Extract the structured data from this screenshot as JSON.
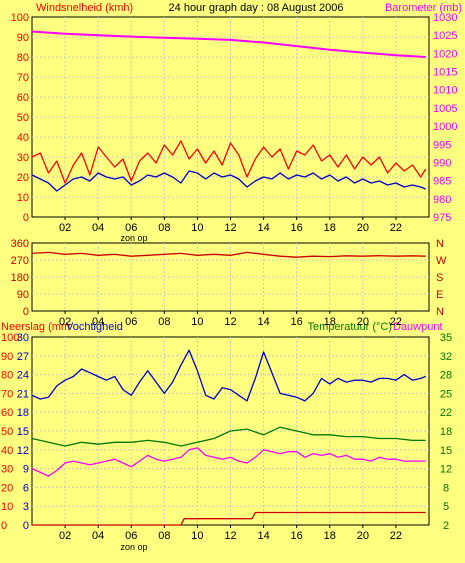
{
  "chart_data": [
    {
      "type": "line",
      "title": "24 hour graph day : 08 August 2006",
      "ylabel_left": "Windsnelheid (kmh)",
      "ylabel_right": "Barometer (mb)",
      "left_ticks": [
        "100",
        "90",
        "80",
        "70",
        "60",
        "50",
        "40",
        "30",
        "20",
        "10",
        "0"
      ],
      "right_ticks": [
        "1030",
        "1025",
        "1020",
        "1015",
        "1010",
        "1005",
        "1000",
        "995",
        "990",
        "985",
        "980",
        "975"
      ],
      "x_ticks": [
        "02",
        "04",
        "06",
        "08",
        "10",
        "12",
        "14",
        "16",
        "18",
        "20",
        "22"
      ],
      "x_annotation": "zon op",
      "ylim_left": [
        0,
        100
      ],
      "ylim_right": [
        975,
        1030
      ],
      "xlim": [
        0,
        24
      ],
      "grid": true,
      "series": [
        {
          "color": "#ff00ff",
          "axis": "right",
          "x": [
            0,
            2,
            4,
            6,
            8,
            10,
            12,
            14,
            16,
            18,
            20,
            22,
            23.8
          ],
          "y": [
            1026,
            1025.4,
            1025,
            1024.6,
            1024.3,
            1024,
            1023.7,
            1023,
            1022,
            1021,
            1020.2,
            1019.5,
            1019
          ]
        },
        {
          "color": "#ff0000",
          "axis": "left",
          "x": [
            0,
            0.5,
            1,
            1.5,
            2,
            2.5,
            3,
            3.5,
            4,
            4.5,
            5,
            5.5,
            6,
            6.5,
            7,
            7.5,
            8,
            8.5,
            9,
            9.5,
            10,
            10.5,
            11,
            11.5,
            12,
            12.5,
            13,
            13.5,
            14,
            14.5,
            15,
            15.5,
            16,
            16.5,
            17,
            17.5,
            18,
            18.5,
            19,
            19.5,
            20,
            20.5,
            21,
            21.5,
            22,
            22.5,
            23,
            23.5,
            23.8
          ],
          "y": [
            30,
            32,
            22,
            28,
            17,
            26,
            32,
            21,
            35,
            30,
            25,
            29,
            18,
            28,
            32,
            27,
            36,
            31,
            38,
            29,
            34,
            27,
            33,
            26,
            37,
            31,
            20,
            29,
            35,
            30,
            34,
            24,
            33,
            31,
            36,
            28,
            31,
            25,
            31,
            24,
            30,
            26,
            30,
            22,
            27,
            23,
            26,
            20,
            24
          ]
        },
        {
          "color": "#0000cc",
          "axis": "left",
          "x": [
            0,
            0.5,
            1,
            1.5,
            2,
            2.5,
            3,
            3.5,
            4,
            4.5,
            5,
            5.5,
            6,
            6.5,
            7,
            7.5,
            8,
            8.5,
            9,
            9.5,
            10,
            10.5,
            11,
            11.5,
            12,
            12.5,
            13,
            13.5,
            14,
            14.5,
            15,
            15.5,
            16,
            16.5,
            17,
            17.5,
            18,
            18.5,
            19,
            19.5,
            20,
            20.5,
            21,
            21.5,
            22,
            22.5,
            23,
            23.5,
            23.8
          ],
          "y": [
            21,
            19,
            17,
            13,
            16,
            19,
            20,
            18,
            22,
            20,
            19,
            20,
            16,
            18,
            21,
            20,
            22,
            20,
            17,
            23,
            22,
            19,
            22,
            20,
            21,
            19,
            15,
            18,
            20,
            19,
            22,
            19,
            21,
            20,
            22,
            19,
            21,
            18,
            20,
            17,
            19,
            17,
            18,
            16,
            17,
            15,
            16,
            15,
            14
          ]
        }
      ]
    },
    {
      "type": "line",
      "left_ticks": [
        "360",
        "270",
        "180",
        "90",
        "0"
      ],
      "right_ticks": [
        "N",
        "W",
        "S",
        "E",
        "N"
      ],
      "x_ticks": [
        "02",
        "04",
        "06",
        "08",
        "10",
        "12",
        "14",
        "16",
        "18",
        "20",
        "22"
      ],
      "ylim": [
        0,
        360
      ],
      "xlim": [
        0,
        24
      ],
      "grid": true,
      "series": [
        {
          "color": "#cc0000",
          "x": [
            0,
            1,
            2,
            3,
            4,
            5,
            6,
            7,
            8,
            9,
            10,
            11,
            12,
            13,
            14,
            15,
            16,
            17,
            18,
            19,
            20,
            21,
            22,
            23,
            23.8
          ],
          "y": [
            305,
            310,
            300,
            305,
            295,
            300,
            290,
            295,
            300,
            305,
            295,
            300,
            295,
            310,
            300,
            290,
            285,
            290,
            288,
            292,
            290,
            293,
            290,
            292,
            290
          ]
        }
      ]
    },
    {
      "type": "line",
      "ylabel_left": "Neerslag (mm",
      "ylabel_left2": "Vochtigheid",
      "ylabel_right": "Temperatuur (°C)",
      "ylabel_right2": "Dauwpunt",
      "left_ticks_outer": [
        "100",
        "90",
        "80",
        "70",
        "60",
        "50",
        "40",
        "30",
        "20",
        "10",
        "0"
      ],
      "left_ticks_inner": [
        "30",
        "27",
        "24",
        "21",
        "18",
        "15",
        "12",
        "9",
        "6",
        "3",
        "0"
      ],
      "right_ticks": [
        "35",
        "32",
        "28",
        "25",
        "22",
        "18",
        "15",
        "12",
        "8",
        "5",
        "2"
      ],
      "x_ticks": [
        "02",
        "04",
        "06",
        "08",
        "10",
        "12",
        "14",
        "16",
        "18",
        "20",
        "22"
      ],
      "x_annotation": "zon op",
      "ylim_humidity": [
        0,
        100
      ],
      "ylim_rain": [
        0,
        30
      ],
      "ylim_temp": [
        2,
        35
      ],
      "xlim": [
        0,
        24
      ],
      "grid": true,
      "series": [
        {
          "color": "#0000cc",
          "axis": "humidity",
          "x": [
            0,
            0.5,
            1,
            1.5,
            2,
            2.5,
            3,
            3.5,
            4,
            4.5,
            5,
            5.5,
            6,
            6.5,
            7,
            7.5,
            8,
            8.5,
            9,
            9.5,
            10,
            10.5,
            11,
            11.5,
            12,
            12.5,
            13,
            13.5,
            14,
            14.5,
            15,
            15.5,
            16,
            16.5,
            17,
            17.5,
            18,
            18.5,
            19,
            19.5,
            20,
            20.5,
            21,
            21.5,
            22,
            22.5,
            23,
            23.5,
            23.8
          ],
          "y": [
            69,
            67,
            68,
            74,
            77,
            79,
            83,
            81,
            79,
            77,
            79,
            72,
            69,
            76,
            82,
            76,
            70,
            76,
            85,
            93,
            82,
            69,
            67,
            73,
            72,
            69,
            66,
            78,
            92,
            81,
            70,
            69,
            68,
            66,
            70,
            78,
            75,
            78,
            76,
            77,
            77,
            76,
            78,
            78,
            77,
            80,
            77,
            78,
            79
          ]
        },
        {
          "color": "#007700",
          "axis": "humidity",
          "x": [
            0,
            1,
            2,
            3,
            4,
            5,
            6,
            7,
            8,
            9,
            10,
            11,
            12,
            13,
            14,
            15,
            16,
            17,
            18,
            19,
            20,
            21,
            22,
            23,
            23.8
          ],
          "y": [
            46,
            44,
            42,
            44,
            43,
            44,
            44,
            45,
            44,
            42,
            44,
            46,
            50,
            51,
            48,
            52,
            50,
            48,
            48,
            47,
            47,
            46,
            46,
            45,
            45
          ]
        },
        {
          "color": "#ff00ff",
          "axis": "humidity",
          "x": [
            0,
            0.5,
            1,
            1.5,
            2,
            2.5,
            3,
            3.5,
            4,
            4.5,
            5,
            5.5,
            6,
            6.5,
            7,
            7.5,
            8,
            8.5,
            9,
            9.5,
            10,
            10.5,
            11,
            11.5,
            12,
            12.5,
            13,
            13.5,
            14,
            14.5,
            15,
            15.5,
            16,
            16.5,
            17,
            17.5,
            18,
            18.5,
            19,
            19.5,
            20,
            20.5,
            21,
            21.5,
            22,
            22.5,
            23,
            23.5,
            23.8
          ],
          "y": [
            30,
            28,
            26,
            29,
            33,
            34,
            33,
            32,
            33,
            34,
            35,
            33,
            31,
            34,
            37,
            35,
            34,
            35,
            36,
            40,
            41,
            37,
            36,
            35,
            36,
            34,
            33,
            36,
            40,
            39,
            38,
            39,
            39,
            36,
            38,
            37,
            38,
            36,
            37,
            35,
            35,
            34,
            36,
            35,
            35,
            34,
            34,
            34,
            34
          ]
        },
        {
          "color": "#cc0000",
          "axis": "rain",
          "x": [
            0,
            9,
            9.2,
            13.3,
            13.5,
            23.8
          ],
          "y": [
            0,
            0,
            1,
            1,
            2,
            2
          ]
        }
      ]
    }
  ]
}
